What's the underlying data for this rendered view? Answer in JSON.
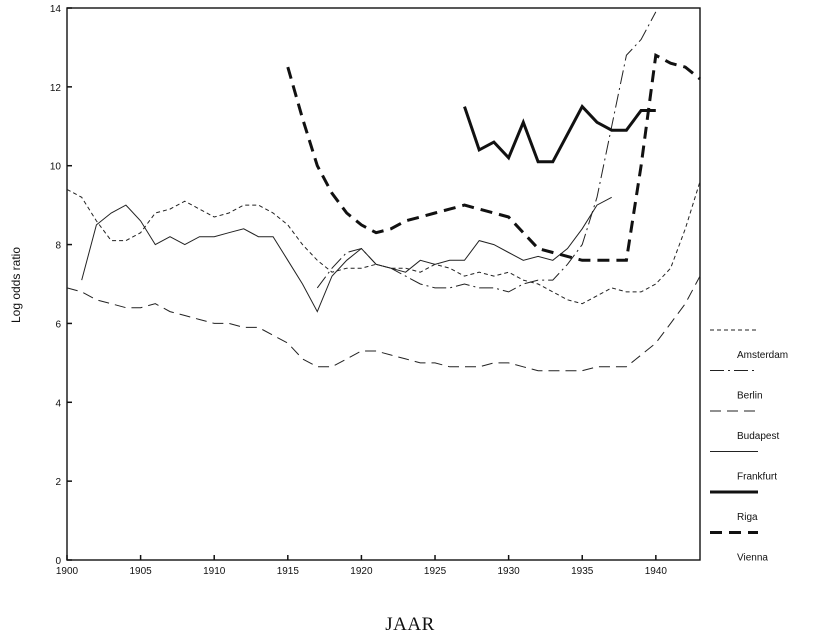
{
  "chart_data": {
    "type": "line",
    "title": "",
    "xlabel": "JAAR",
    "ylabel": "Log odds ratio",
    "xlim": [
      1900,
      1943
    ],
    "ylim": [
      0,
      14
    ],
    "xticks": [
      1900,
      1905,
      1910,
      1915,
      1920,
      1925,
      1930,
      1935,
      1940
    ],
    "yticks": [
      0,
      2,
      4,
      6,
      8,
      10,
      12,
      14
    ],
    "grid": false,
    "legend_position": "right",
    "series": [
      {
        "name": "Amsterdam",
        "style": "short-dash",
        "width": 1,
        "color": "#222222",
        "x": [
          1900,
          1901,
          1902,
          1903,
          1904,
          1905,
          1906,
          1907,
          1908,
          1909,
          1910,
          1911,
          1912,
          1913,
          1914,
          1915,
          1916,
          1917,
          1918,
          1919,
          1920,
          1921,
          1922,
          1923,
          1924,
          1925,
          1926,
          1927,
          1928,
          1929,
          1930,
          1931,
          1932,
          1933,
          1934,
          1935,
          1936,
          1937,
          1938,
          1939,
          1940,
          1941,
          1942,
          1943
        ],
        "y": [
          9.4,
          9.2,
          8.6,
          8.1,
          8.1,
          8.3,
          8.8,
          8.9,
          9.1,
          8.9,
          8.7,
          8.8,
          9.0,
          9.0,
          8.8,
          8.5,
          8.0,
          7.6,
          7.3,
          7.4,
          7.4,
          7.5,
          7.4,
          7.4,
          7.3,
          7.5,
          7.4,
          7.2,
          7.3,
          7.2,
          7.3,
          7.1,
          7.0,
          6.8,
          6.6,
          6.5,
          6.7,
          6.9,
          6.8,
          6.8,
          7.0,
          7.4,
          8.4,
          9.6
        ]
      },
      {
        "name": "Berlin",
        "style": "dash-dot",
        "width": 1,
        "color": "#222222",
        "x": [
          1917,
          1918,
          1919,
          1920,
          1921,
          1922,
          1923,
          1924,
          1925,
          1926,
          1927,
          1928,
          1929,
          1930,
          1931,
          1932,
          1933,
          1934,
          1935,
          1936,
          1937,
          1938,
          1939,
          1940
        ],
        "y": [
          6.9,
          7.4,
          7.8,
          7.9,
          7.5,
          7.4,
          7.2,
          7.0,
          6.9,
          6.9,
          7.0,
          6.9,
          6.9,
          6.8,
          7.0,
          7.1,
          7.1,
          7.5,
          8.0,
          9.2,
          11.0,
          12.8,
          13.2,
          13.9
        ]
      },
      {
        "name": "Budapest",
        "style": "long-dash",
        "width": 1,
        "color": "#222222",
        "x": [
          1900,
          1901,
          1902,
          1903,
          1904,
          1905,
          1906,
          1907,
          1908,
          1909,
          1910,
          1911,
          1912,
          1913,
          1914,
          1915,
          1916,
          1917,
          1918,
          1919,
          1920,
          1921,
          1922,
          1923,
          1924,
          1925,
          1926,
          1927,
          1928,
          1929,
          1930,
          1931,
          1932,
          1933,
          1934,
          1935,
          1936,
          1937,
          1938,
          1939,
          1940,
          1941,
          1942,
          1943
        ],
        "y": [
          6.9,
          6.8,
          6.6,
          6.5,
          6.4,
          6.4,
          6.5,
          6.3,
          6.2,
          6.1,
          6.0,
          6.0,
          5.9,
          5.9,
          5.7,
          5.5,
          5.1,
          4.9,
          4.9,
          5.1,
          5.3,
          5.3,
          5.2,
          5.1,
          5.0,
          5.0,
          4.9,
          4.9,
          4.9,
          5.0,
          5.0,
          4.9,
          4.8,
          4.8,
          4.8,
          4.8,
          4.9,
          4.9,
          4.9,
          5.2,
          5.5,
          6.0,
          6.5,
          7.2
        ]
      },
      {
        "name": "Frankfurt",
        "style": "solid",
        "width": 1,
        "color": "#222222",
        "x": [
          1901,
          1902,
          1903,
          1904,
          1905,
          1906,
          1907,
          1908,
          1909,
          1910,
          1911,
          1912,
          1913,
          1914,
          1915,
          1916,
          1917,
          1918,
          1919,
          1920,
          1921,
          1922,
          1923,
          1924,
          1925,
          1926,
          1927,
          1928,
          1929,
          1930,
          1931,
          1932,
          1933,
          1934,
          1935,
          1936,
          1937
        ],
        "y": [
          7.1,
          8.5,
          8.8,
          9.0,
          8.6,
          8.0,
          8.2,
          8.0,
          8.2,
          8.2,
          8.3,
          8.4,
          8.2,
          8.2,
          7.6,
          7.0,
          6.3,
          7.2,
          7.6,
          7.9,
          7.5,
          7.4,
          7.3,
          7.6,
          7.5,
          7.6,
          7.6,
          8.1,
          8.0,
          7.8,
          7.6,
          7.7,
          7.6,
          7.9,
          8.4,
          9.0,
          9.2
        ]
      },
      {
        "name": "Riga",
        "style": "solid",
        "width": 3,
        "color": "#111111",
        "x": [
          1927,
          1928,
          1929,
          1930,
          1931,
          1932,
          1933,
          1934,
          1935,
          1936,
          1937,
          1938,
          1939,
          1940
        ],
        "y": [
          11.5,
          10.4,
          10.6,
          10.2,
          11.1,
          10.1,
          10.1,
          10.8,
          11.5,
          11.1,
          10.9,
          10.9,
          11.4,
          11.4
        ]
      },
      {
        "name": "Vienna",
        "style": "heavy-dash",
        "width": 3,
        "color": "#111111",
        "x": [
          1915,
          1916,
          1917,
          1918,
          1919,
          1920,
          1921,
          1922,
          1923,
          1924,
          1925,
          1926,
          1927,
          1928,
          1929,
          1930,
          1931,
          1932,
          1933,
          1934,
          1935,
          1936,
          1937,
          1938,
          1939,
          1940,
          1941,
          1942,
          1943
        ],
        "y": [
          12.5,
          11.2,
          10.0,
          9.3,
          8.8,
          8.5,
          8.3,
          8.4,
          8.6,
          8.7,
          8.8,
          8.9,
          9.0,
          8.9,
          8.8,
          8.7,
          8.3,
          7.9,
          7.8,
          7.7,
          7.6,
          7.6,
          7.6,
          7.6,
          10.0,
          12.8,
          12.6,
          12.5,
          12.2
        ]
      }
    ]
  }
}
